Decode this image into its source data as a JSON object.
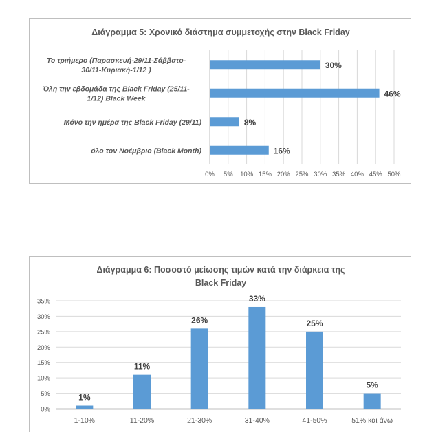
{
  "chart_data": [
    {
      "type": "bar",
      "orientation": "horizontal",
      "title": "Διάγραμμα 5: Χρονικό διάστημα συμμετοχής στην Black Friday",
      "categories": [
        [
          "Το τριήμερο (Παρασκευή-29/11-Σάββατο-",
          "30/11-Κυριακή-1/12 )"
        ],
        [
          "Όλη την εβδομάδα της Black Friday (25/11-",
          "1/12) Black Week"
        ],
        [
          "Μόνο την ημέρα της Black Friday (29/11)"
        ],
        [
          "όλο τον Νοέμβριο (Black Month)"
        ]
      ],
      "values": [
        30,
        46,
        8,
        16
      ],
      "data_labels": [
        "30%",
        "46%",
        "8%",
        "16%"
      ],
      "xlim": [
        0,
        50
      ],
      "ticks": [
        "0%",
        "5%",
        "10%",
        "15%",
        "20%",
        "25%",
        "30%",
        "35%",
        "40%",
        "45%",
        "50%"
      ],
      "grid": true,
      "color": "#5b9bd5"
    },
    {
      "type": "bar",
      "orientation": "vertical",
      "title": [
        "Διάγραμμα 6: Ποσοστό μείωσης τιμών κατά την διάρκεια της",
        "Black Friday"
      ],
      "categories": [
        "1-10%",
        "11-20%",
        "21-30%",
        "31-40%",
        "41-50%",
        "51% και άνω"
      ],
      "values": [
        1,
        11,
        26,
        33,
        25,
        5
      ],
      "data_labels": [
        "1%",
        "11%",
        "26%",
        "33%",
        "25%",
        "5%"
      ],
      "ylim": [
        0,
        35
      ],
      "ticks": [
        "0%",
        "5%",
        "10%",
        "15%",
        "20%",
        "25%",
        "30%",
        "35%"
      ],
      "grid": true,
      "color": "#5b9bd5"
    }
  ]
}
